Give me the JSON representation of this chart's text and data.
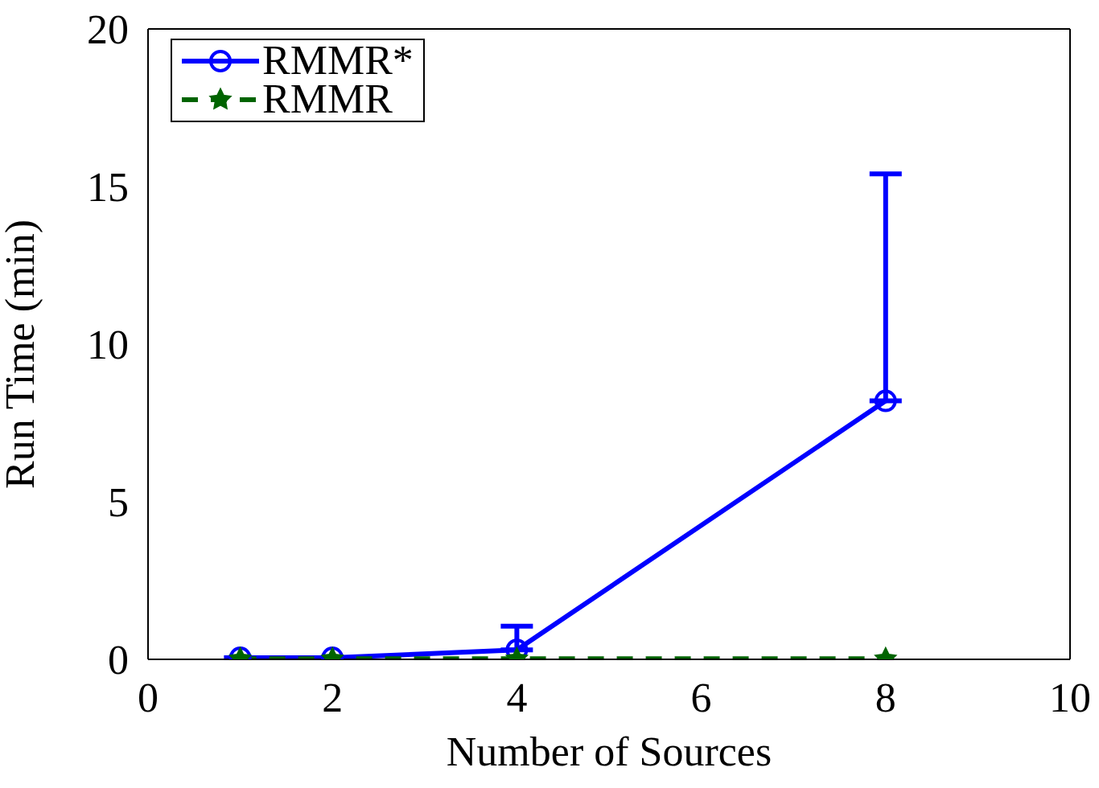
{
  "chart_data": {
    "type": "line",
    "xlabel": "Number of Sources",
    "ylabel": "Run Time (min)",
    "x": [
      1,
      2,
      4,
      8
    ],
    "series": [
      {
        "name": "RMMR*",
        "color": "#0000ff",
        "values": [
          0.05,
          0.05,
          0.3,
          8.2
        ],
        "errors": [
          null,
          null,
          [
            0.3,
            1.05
          ],
          [
            8.2,
            15.4
          ]
        ],
        "marker": "circle",
        "line_style": "solid"
      },
      {
        "name": "RMMR",
        "color": "#006400",
        "values": [
          0.02,
          0.02,
          0.02,
          0.02
        ],
        "marker": "star",
        "line_style": "dashed"
      }
    ],
    "xlim": [
      0,
      10
    ],
    "xticks": [
      0,
      2,
      4,
      6,
      8,
      10
    ],
    "ylim": [
      0,
      20
    ],
    "yticks": [
      0,
      5,
      10,
      15,
      20
    ],
    "grid": false,
    "legend": "top left"
  }
}
